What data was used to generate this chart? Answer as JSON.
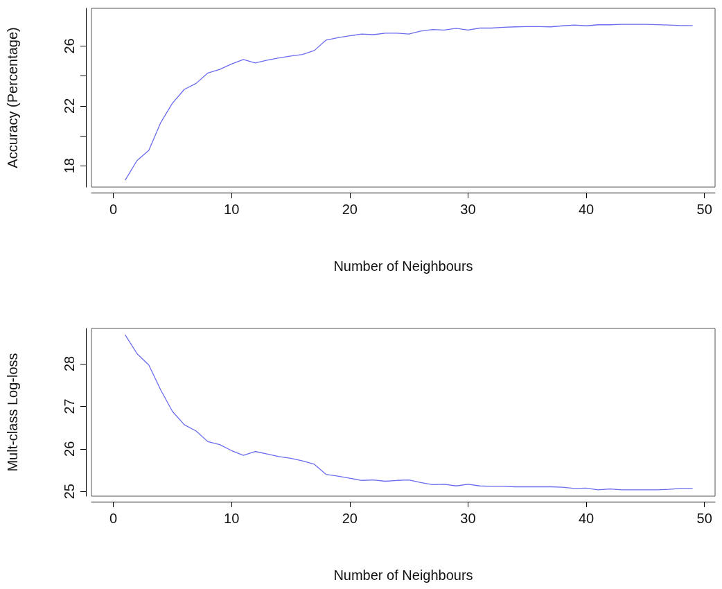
{
  "chart_data": [
    {
      "type": "line",
      "xlabel": "Number of Neighbours",
      "ylabel": "Accuracy (Percentage)",
      "x": [
        1,
        2,
        3,
        4,
        5,
        6,
        7,
        8,
        9,
        10,
        11,
        12,
        13,
        14,
        15,
        16,
        17,
        18,
        19,
        20,
        21,
        22,
        23,
        24,
        25,
        26,
        27,
        28,
        29,
        30,
        31,
        32,
        33,
        34,
        35,
        36,
        37,
        38,
        39,
        40,
        41,
        42,
        43,
        44,
        45,
        46,
        47,
        48,
        49
      ],
      "series": [
        {
          "color": "#6b6bf0",
          "values": [
            17.03,
            18.34,
            19.03,
            20.87,
            22.18,
            23.1,
            23.5,
            24.2,
            24.44,
            24.8,
            25.1,
            24.87,
            25.05,
            25.2,
            25.33,
            25.43,
            25.7,
            26.4,
            26.56,
            26.68,
            26.8,
            26.76,
            26.86,
            26.86,
            26.8,
            27.0,
            27.1,
            27.07,
            27.18,
            27.07,
            27.2,
            27.2,
            27.25,
            27.28,
            27.3,
            27.3,
            27.28,
            27.35,
            27.4,
            27.35,
            27.42,
            27.42,
            27.45,
            27.45,
            27.45,
            27.43,
            27.4,
            27.37,
            27.37
          ]
        }
      ],
      "xlim": [
        -1.85,
        50.9
      ],
      "xticks": [
        0,
        10,
        20,
        30,
        40,
        50
      ],
      "ylim": [
        16.57,
        28.52
      ],
      "yticks": [
        18,
        {
          "value": 20,
          "label": null
        },
        22,
        {
          "value": 24,
          "label": null
        },
        26
      ],
      "grid": false
    },
    {
      "type": "line",
      "xlabel": "Number of Neighbours",
      "ylabel": "Mult-class Log-loss",
      "x": [
        1,
        2,
        3,
        4,
        5,
        6,
        7,
        8,
        9,
        10,
        11,
        12,
        13,
        14,
        15,
        16,
        17,
        18,
        19,
        20,
        21,
        22,
        23,
        24,
        25,
        26,
        27,
        28,
        29,
        30,
        31,
        32,
        33,
        34,
        35,
        36,
        37,
        38,
        39,
        40,
        41,
        42,
        43,
        44,
        45,
        46,
        47,
        48,
        49
      ],
      "series": [
        {
          "color": "#6b6bf0",
          "values": [
            28.68,
            28.24,
            27.97,
            27.39,
            26.88,
            26.57,
            26.42,
            26.17,
            26.1,
            25.96,
            25.85,
            25.94,
            25.88,
            25.82,
            25.78,
            25.72,
            25.64,
            25.4,
            25.36,
            25.31,
            25.26,
            25.27,
            25.24,
            25.26,
            25.27,
            25.21,
            25.16,
            25.17,
            25.13,
            25.17,
            25.13,
            25.12,
            25.12,
            25.11,
            25.11,
            25.11,
            25.11,
            25.1,
            25.07,
            25.08,
            25.04,
            25.06,
            25.04,
            25.04,
            25.04,
            25.04,
            25.05,
            25.07,
            25.07
          ]
        }
      ],
      "xlim": [
        -1.85,
        50.9
      ],
      "xticks": [
        0,
        10,
        20,
        30,
        40,
        50
      ],
      "ylim": [
        24.89,
        28.83
      ],
      "yticks": [
        25,
        26,
        27,
        28
      ],
      "grid": false
    }
  ]
}
